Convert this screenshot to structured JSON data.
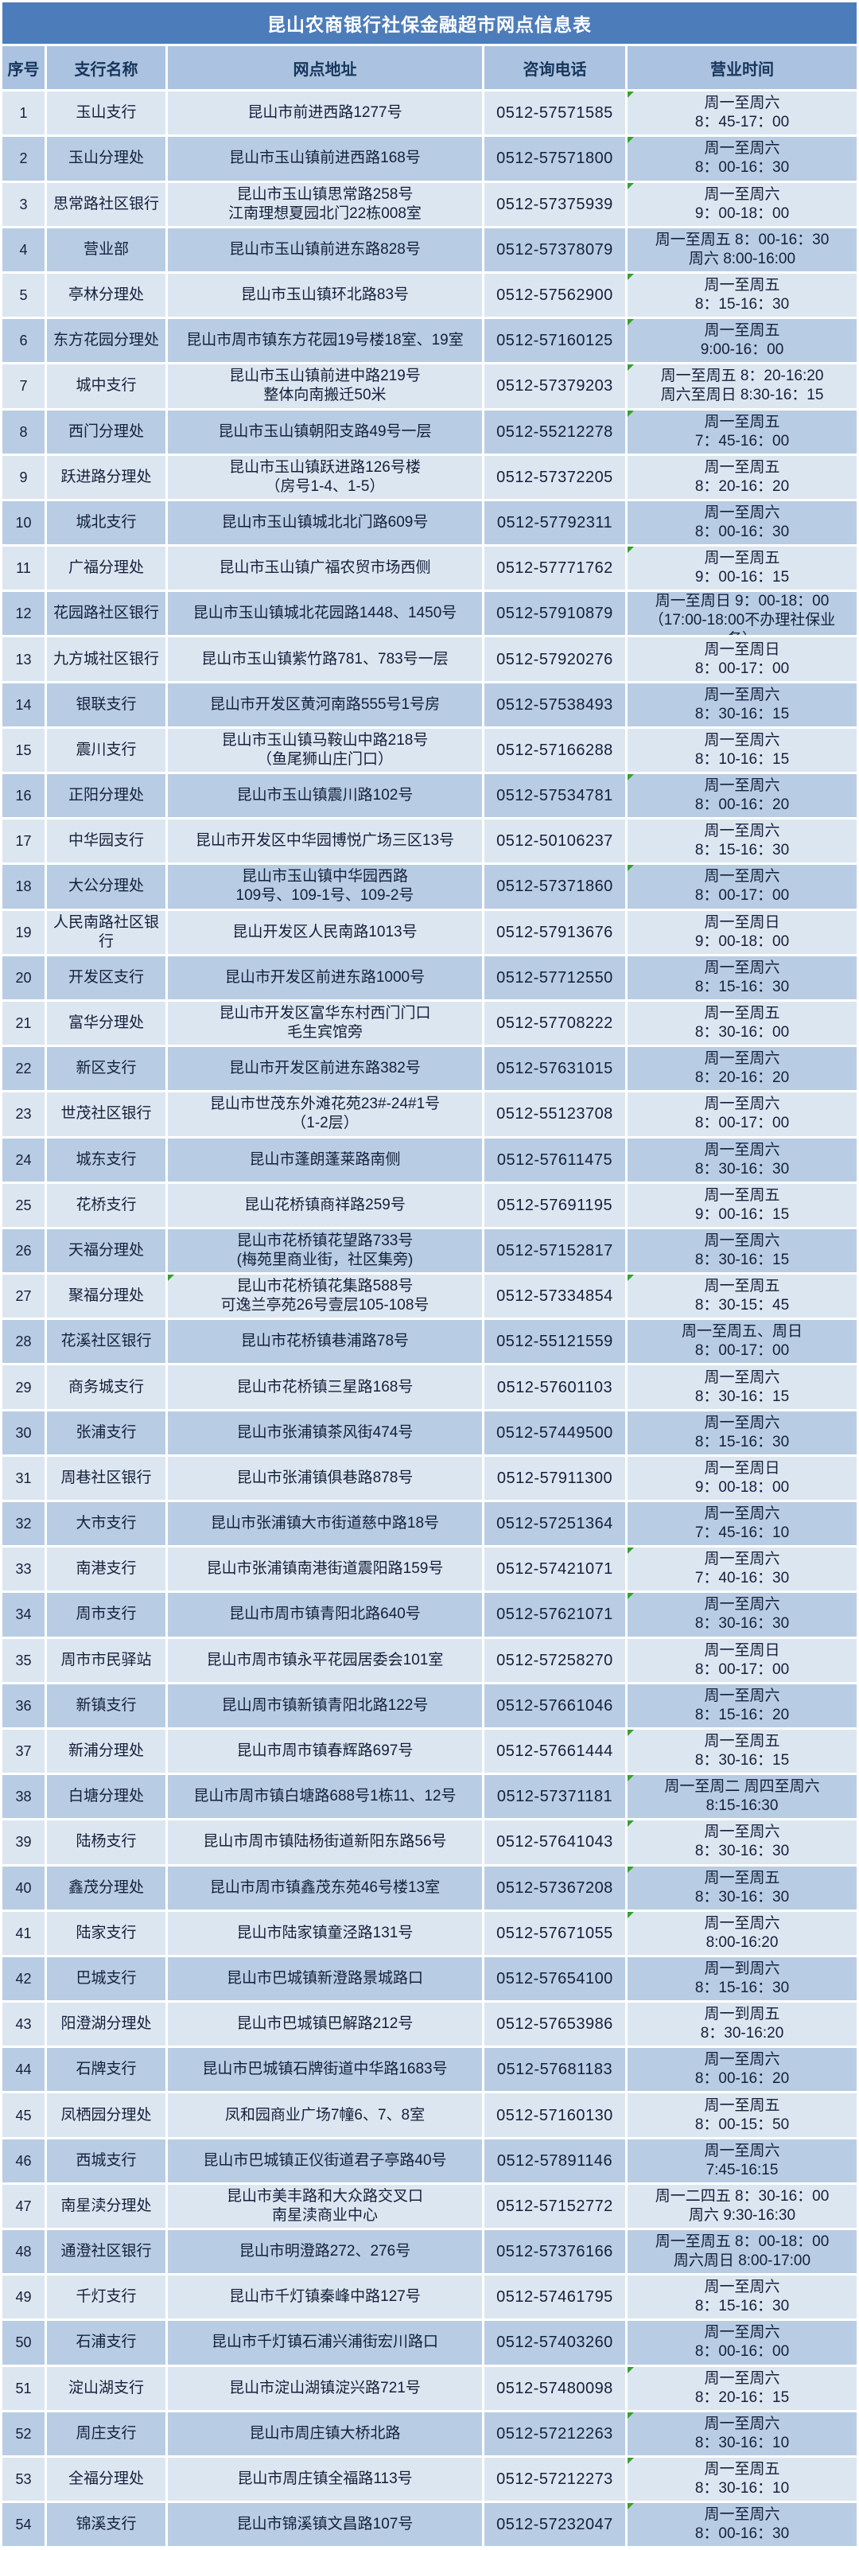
{
  "title": "昆山农商银行社保金融超市网点信息表",
  "columns": [
    "序号",
    "支行名称",
    "网点地址",
    "咨询电话",
    "营业时间"
  ],
  "colors": {
    "title_bg": "#4d7cbb",
    "header_bg": "#abc3e0",
    "row_light": "#dce6f1",
    "row_dark": "#b8cce4",
    "grid_line": "#ffffff",
    "text": "#14203a",
    "header_text": "#17365d",
    "marker_green": "#35a02e"
  },
  "rows": [
    {
      "no": "1",
      "name": "玉山支行",
      "address": [
        "昆山市前进西路1277号"
      ],
      "phone": "0512-57571585",
      "hours": [
        "周一至周六",
        "8：45-17：00"
      ],
      "marker": true
    },
    {
      "no": "2",
      "name": "玉山分理处",
      "address": [
        "昆山市玉山镇前进西路168号"
      ],
      "phone": "0512-57571800",
      "hours": [
        "周一至周六",
        "8：00-16：30"
      ],
      "marker": true
    },
    {
      "no": "3",
      "name": "思常路社区银行",
      "address": [
        "昆山市玉山镇思常路258号",
        "江南理想夏园北门22栋008室"
      ],
      "phone": "0512-57375939",
      "hours": [
        "周一至周六",
        "9：00-18：00"
      ],
      "marker": true
    },
    {
      "no": "4",
      "name": "营业部",
      "address": [
        "昆山市玉山镇前进东路828号"
      ],
      "phone": "0512-57378079",
      "hours": [
        "周一至周五 8：00-16：30",
        "周六 8:00-16:00"
      ],
      "marker": false
    },
    {
      "no": "5",
      "name": "亭林分理处",
      "address": [
        "昆山市玉山镇环北路83号"
      ],
      "phone": "0512-57562900",
      "hours": [
        "周一至周五",
        "8：15-16：30"
      ],
      "marker": true
    },
    {
      "no": "6",
      "name": "东方花园分理处",
      "address": [
        "昆山市周市镇东方花园19号楼18室、19室"
      ],
      "phone": "0512-57160125",
      "hours": [
        "周一至周五",
        "9:00-16：00"
      ],
      "marker": true
    },
    {
      "no": "7",
      "name": "城中支行",
      "address": [
        "昆山市玉山镇前进中路219号",
        "整体向南搬迁50米"
      ],
      "phone": "0512-57379203",
      "hours": [
        "周一至周五 8：20-16:20",
        "周六至周日 8:30-16：15"
      ],
      "marker": true
    },
    {
      "no": "8",
      "name": "西门分理处",
      "address": [
        "昆山市玉山镇朝阳支路49号一层"
      ],
      "phone": "0512-55212278",
      "hours": [
        "周一至周五",
        "7：45-16：00"
      ],
      "marker": true
    },
    {
      "no": "9",
      "name": "跃进路分理处",
      "address": [
        "昆山市玉山镇跃进路126号楼",
        "（房号1-4、1-5）"
      ],
      "phone": "0512-57372205",
      "hours": [
        "周一至周五",
        "8：20-16：20"
      ],
      "marker": false
    },
    {
      "no": "10",
      "name": "城北支行",
      "address": [
        "昆山市玉山镇城北北门路609号"
      ],
      "phone": "0512-57792311",
      "hours": [
        "周一至周六",
        "8：00-16：30"
      ],
      "marker": false
    },
    {
      "no": "11",
      "name": "广福分理处",
      "address": [
        "昆山市玉山镇广福农贸市场西侧"
      ],
      "phone": "0512-57771762",
      "hours": [
        "周一至周五",
        "9：00-16：15"
      ],
      "marker": true
    },
    {
      "no": "12",
      "name": "花园路社区银行",
      "address": [
        "昆山市玉山镇城北花园路1448、1450号"
      ],
      "phone": "0512-57910879",
      "hours": [
        "周一至周日 9：00-18：00",
        "（17:00-18:00不办理社保业",
        "务）"
      ],
      "marker": false
    },
    {
      "no": "13",
      "name": "九方城社区银行",
      "address": [
        "昆山市玉山镇紫竹路781、783号一层"
      ],
      "phone": "0512-57920276",
      "hours": [
        "周一至周日",
        "8：00-17：00"
      ],
      "marker": false
    },
    {
      "no": "14",
      "name": "银联支行",
      "address": [
        "昆山市开发区黄河南路555号1号房"
      ],
      "phone": "0512-57538493",
      "hours": [
        "周一至周六",
        "8：30-16：15"
      ],
      "marker": false
    },
    {
      "no": "15",
      "name": "震川支行",
      "address": [
        "昆山市玉山镇马鞍山中路218号",
        "（鱼尾狮山庄门口）"
      ],
      "phone": "0512-57166288",
      "hours": [
        "周一至周六",
        "8：10-16：15"
      ],
      "marker": false
    },
    {
      "no": "16",
      "name": "正阳分理处",
      "address": [
        "昆山市玉山镇震川路102号"
      ],
      "phone": "0512-57534781",
      "hours": [
        "周一至周六",
        "8：00-16：20"
      ],
      "marker": true
    },
    {
      "no": "17",
      "name": "中华园支行",
      "address": [
        "昆山市开发区中华园博悦广场三区13号"
      ],
      "phone": "0512-50106237",
      "hours": [
        "周一至周六",
        "8：15-16：30"
      ],
      "marker": false
    },
    {
      "no": "18",
      "name": "大公分理处",
      "address": [
        "昆山市玉山镇中华园西路",
        "109号、109-1号、109-2号"
      ],
      "phone": "0512-57371860",
      "hours": [
        "周一至周六",
        "8：00-17：00"
      ],
      "marker": true
    },
    {
      "no": "19",
      "name": "人民南路社区银行",
      "address": [
        "昆山开发区人民南路1013号"
      ],
      "phone": "0512-57913676",
      "hours": [
        "周一至周日",
        "9：00-18：00"
      ],
      "marker": false
    },
    {
      "no": "20",
      "name": "开发区支行",
      "address": [
        "昆山市开发区前进东路1000号"
      ],
      "phone": "0512-57712550",
      "hours": [
        "周一至周六",
        "8：15-16：30"
      ],
      "marker": false
    },
    {
      "no": "21",
      "name": "富华分理处",
      "address": [
        "昆山市开发区富华东村西门门口",
        "毛生宾馆旁"
      ],
      "phone": "0512-57708222",
      "hours": [
        "周一至周五",
        "8：30-16：00"
      ],
      "marker": false
    },
    {
      "no": "22",
      "name": "新区支行",
      "address": [
        "昆山市开发区前进东路382号"
      ],
      "phone": "0512-57631015",
      "hours": [
        "周一至周六",
        "8：20-16：20"
      ],
      "marker": false
    },
    {
      "no": "23",
      "name": "世茂社区银行",
      "address": [
        "昆山市世茂东外滩花苑23#-24#1号",
        "（1-2层）"
      ],
      "phone": "0512-55123708",
      "hours": [
        "周一至周六",
        "8：00-17：00"
      ],
      "marker": false
    },
    {
      "no": "24",
      "name": "城东支行",
      "address": [
        "昆山市蓬朗蓬莱路南侧"
      ],
      "phone": "0512-57611475",
      "hours": [
        "周一至周六",
        "8：30-16：30"
      ],
      "marker": false
    },
    {
      "no": "25",
      "name": "花桥支行",
      "address": [
        "昆山花桥镇商祥路259号"
      ],
      "phone": "0512-57691195",
      "hours": [
        "周一至周五",
        "9：00-16：15"
      ],
      "marker": false
    },
    {
      "no": "26",
      "name": "天福分理处",
      "address": [
        "昆山市花桥镇花望路733号",
        "(梅苑里商业街，社区集旁)"
      ],
      "phone": "0512-57152817",
      "hours": [
        "周一至周六",
        "8：30-16：15"
      ],
      "marker": false
    },
    {
      "no": "27",
      "name": "聚福分理处",
      "address": [
        "昆山市花桥镇花集路588号",
        "可逸兰亭苑26号壹层105-108号"
      ],
      "phone": "0512-57334854",
      "hours": [
        "周一至周五",
        "8：30-15：45"
      ],
      "marker": true,
      "addr_marker": true
    },
    {
      "no": "28",
      "name": "花溪社区银行",
      "address": [
        "昆山市花桥镇巷浦路78号"
      ],
      "phone": "0512-55121559",
      "hours": [
        "周一至周五、周日",
        "8：00-17：00"
      ],
      "marker": false
    },
    {
      "no": "29",
      "name": "商务城支行",
      "address": [
        "昆山市花桥镇三星路168号"
      ],
      "phone": "0512-57601103",
      "hours": [
        "周一至周六",
        "8：30-16：15"
      ],
      "marker": false
    },
    {
      "no": "30",
      "name": "张浦支行",
      "address": [
        "昆山市张浦镇茶风街474号"
      ],
      "phone": "0512-57449500",
      "hours": [
        "周一至周六",
        "8：15-16：30"
      ],
      "marker": false
    },
    {
      "no": "31",
      "name": "周巷社区银行",
      "address": [
        "昆山市张浦镇俱巷路878号"
      ],
      "phone": "0512-57911300",
      "hours": [
        "周一至周日",
        "9：00-18：00"
      ],
      "marker": false
    },
    {
      "no": "32",
      "name": "大市支行",
      "address": [
        "昆山市张浦镇大市街道慈中路18号"
      ],
      "phone": "0512-57251364",
      "hours": [
        "周一至周六",
        "7：45-16：10"
      ],
      "marker": false
    },
    {
      "no": "33",
      "name": "南港支行",
      "address": [
        "昆山市张浦镇南港街道震阳路159号"
      ],
      "phone": "0512-57421071",
      "hours": [
        "周一至周六",
        "7：40-16：30"
      ],
      "marker": true
    },
    {
      "no": "34",
      "name": "周市支行",
      "address": [
        "昆山市周市镇青阳北路640号"
      ],
      "phone": "0512-57621071",
      "hours": [
        "周一至周六",
        "8：30-16：30"
      ],
      "marker": true
    },
    {
      "no": "35",
      "name": "周市市民驿站",
      "address": [
        "昆山市周市镇永平花园居委会101室"
      ],
      "phone": "0512-57258270",
      "hours": [
        "周一至周日",
        "8：00-17：00"
      ],
      "marker": false
    },
    {
      "no": "36",
      "name": "新镇支行",
      "address": [
        "昆山周市镇新镇青阳北路122号"
      ],
      "phone": "0512-57661046",
      "hours": [
        "周一至周六",
        "8：15-16：20"
      ],
      "marker": false
    },
    {
      "no": "37",
      "name": "新浦分理处",
      "address": [
        "昆山市周市镇春辉路697号"
      ],
      "phone": "0512-57661444",
      "hours": [
        "周一至周五",
        "8：30-16：15"
      ],
      "marker": true
    },
    {
      "no": "38",
      "name": "白塘分理处",
      "address": [
        "昆山市周市镇白塘路688号1栋11、12号"
      ],
      "phone": "0512-57371181",
      "hours": [
        "周一至周二 周四至周六",
        "8:15-16:30"
      ],
      "marker": true
    },
    {
      "no": "39",
      "name": "陆杨支行",
      "address": [
        "昆山市周市镇陆杨街道新阳东路56号"
      ],
      "phone": "0512-57641043",
      "hours": [
        "周一至周六",
        "8：30-16：30"
      ],
      "marker": true
    },
    {
      "no": "40",
      "name": "鑫茂分理处",
      "address": [
        "昆山市周市镇鑫茂东苑46号楼13室"
      ],
      "phone": "0512-57367208",
      "hours": [
        "周一至周五",
        "8：30-16：30"
      ],
      "marker": true
    },
    {
      "no": "41",
      "name": "陆家支行",
      "address": [
        "昆山市陆家镇童泾路131号"
      ],
      "phone": "0512-57671055",
      "hours": [
        "周一至周六",
        "8:00-16:20"
      ],
      "marker": true
    },
    {
      "no": "42",
      "name": "巴城支行",
      "address": [
        "昆山市巴城镇新澄路景城路口"
      ],
      "phone": "0512-57654100",
      "hours": [
        "周一到周六",
        "8：15-16：30"
      ],
      "marker": false
    },
    {
      "no": "43",
      "name": "阳澄湖分理处",
      "address": [
        "昆山市巴城镇巴解路212号"
      ],
      "phone": "0512-57653986",
      "hours": [
        "周一到周五",
        "8：30-16:20"
      ],
      "marker": false
    },
    {
      "no": "44",
      "name": "石牌支行",
      "address": [
        "昆山市巴城镇石牌街道中华路1683号"
      ],
      "phone": "0512-57681183",
      "hours": [
        "周一至周六",
        "8：00-16：20"
      ],
      "marker": false
    },
    {
      "no": "45",
      "name": "凤栖园分理处",
      "address": [
        "凤和园商业广场7幢6、7、8室"
      ],
      "phone": "0512-57160130",
      "hours": [
        "周一至周五",
        "8：00-15：50"
      ],
      "marker": false
    },
    {
      "no": "46",
      "name": "西城支行",
      "address": [
        "昆山市巴城镇正仪街道君子亭路40号"
      ],
      "phone": "0512-57891146",
      "hours": [
        "周一至周六",
        "7:45-16:15"
      ],
      "marker": false
    },
    {
      "no": "47",
      "name": "南星渎分理处",
      "address": [
        "昆山市美丰路和大众路交叉口",
        "南星渎商业中心"
      ],
      "phone": "0512-57152772",
      "hours": [
        "周一二四五 8：30-16：00",
        "周六 9:30-16:30"
      ],
      "marker": false
    },
    {
      "no": "48",
      "name": "通澄社区银行",
      "address": [
        "昆山市明澄路272、276号"
      ],
      "phone": "0512-57376166",
      "hours": [
        "周一至周五 8：00-18：00",
        "周六周日 8:00-17:00"
      ],
      "marker": false
    },
    {
      "no": "49",
      "name": "千灯支行",
      "address": [
        "昆山市千灯镇秦峰中路127号"
      ],
      "phone": "0512-57461795",
      "hours": [
        "周一至周六",
        "8：15-16：30"
      ],
      "marker": false
    },
    {
      "no": "50",
      "name": "石浦支行",
      "address": [
        "昆山市千灯镇石浦兴浦街宏川路口"
      ],
      "phone": "0512-57403260",
      "hours": [
        "周一至周六",
        "8：00-16：00"
      ],
      "marker": false
    },
    {
      "no": "51",
      "name": "淀山湖支行",
      "address": [
        "昆山市淀山湖镇淀兴路721号"
      ],
      "phone": "0512-57480098",
      "hours": [
        "周一至周六",
        "8：20-16：15"
      ],
      "marker": true
    },
    {
      "no": "52",
      "name": "周庄支行",
      "address": [
        "昆山市周庄镇大桥北路"
      ],
      "phone": "0512-57212263",
      "hours": [
        "周一至周六",
        "8：30-16：10"
      ],
      "marker": true
    },
    {
      "no": "53",
      "name": "全福分理处",
      "address": [
        "昆山市周庄镇全福路113号"
      ],
      "phone": "0512-57212273",
      "hours": [
        "周一至周五",
        "8：30-16：10"
      ],
      "marker": true
    },
    {
      "no": "54",
      "name": "锦溪支行",
      "address": [
        "昆山市锦溪镇文昌路107号"
      ],
      "phone": "0512-57232047",
      "hours": [
        "周一至周六",
        "8：00-16：30"
      ],
      "marker": true
    }
  ]
}
